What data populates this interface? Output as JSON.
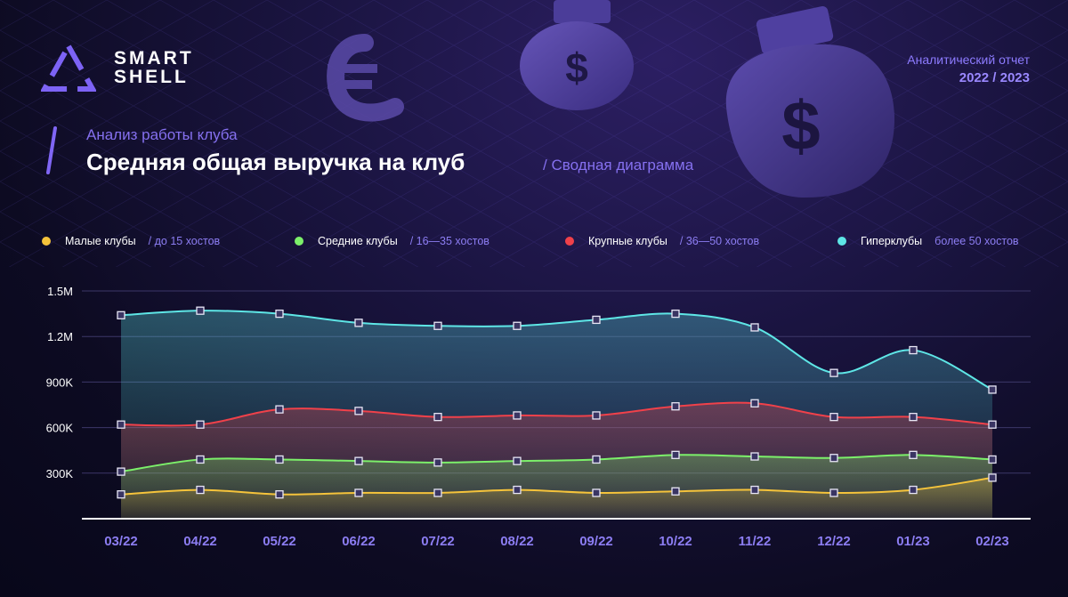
{
  "brand": {
    "line1": "SMART",
    "line2": "SHELL"
  },
  "report": {
    "label": "Аналитический отчет",
    "years": "2022 / 2023"
  },
  "header": {
    "subtitle": "Анализ работы клуба",
    "title": "Средняя общая выручка на клуб",
    "note": "/ Сводная диаграмма"
  },
  "legend": [
    {
      "name": "Малые клубы",
      "range": "/ до 15 хостов",
      "color": "#f5c33b"
    },
    {
      "name": "Средние клубы",
      "range": "/ 16—35 хостов",
      "color": "#7cf06a"
    },
    {
      "name": "Крупные клубы",
      "range": "/ 36—50 хостов",
      "color": "#f0414a"
    },
    {
      "name": "Гиперклубы",
      "range": "более 50 хостов",
      "color": "#5ee6e6"
    }
  ],
  "chart_data": {
    "type": "line",
    "categories": [
      "03/22",
      "04/22",
      "05/22",
      "06/22",
      "07/22",
      "08/22",
      "09/22",
      "10/22",
      "11/22",
      "12/22",
      "01/23",
      "02/23"
    ],
    "ylim": [
      0,
      1500000
    ],
    "yticks": [
      {
        "value": 300000,
        "label": "300K"
      },
      {
        "value": 600000,
        "label": "600K"
      },
      {
        "value": 900000,
        "label": "900K"
      },
      {
        "value": 1200000,
        "label": "1.2M"
      },
      {
        "value": 1500000,
        "label": "1.5M"
      }
    ],
    "grid": true,
    "legend_position": "top",
    "series": [
      {
        "name": "Гиперклубы",
        "color": "#5ee6e6",
        "values": [
          1340000,
          1370000,
          1350000,
          1290000,
          1270000,
          1270000,
          1310000,
          1350000,
          1260000,
          960000,
          1110000,
          850000
        ]
      },
      {
        "name": "Крупные клубы",
        "color": "#f0414a",
        "values": [
          620000,
          620000,
          720000,
          710000,
          670000,
          680000,
          680000,
          740000,
          760000,
          670000,
          670000,
          620000
        ]
      },
      {
        "name": "Средние клубы",
        "color": "#7cf06a",
        "values": [
          310000,
          390000,
          390000,
          380000,
          370000,
          380000,
          390000,
          420000,
          410000,
          400000,
          420000,
          390000
        ]
      },
      {
        "name": "Малые клубы",
        "color": "#f5c33b",
        "values": [
          160000,
          190000,
          160000,
          170000,
          170000,
          190000,
          170000,
          180000,
          190000,
          170000,
          190000,
          270000
        ]
      }
    ]
  }
}
